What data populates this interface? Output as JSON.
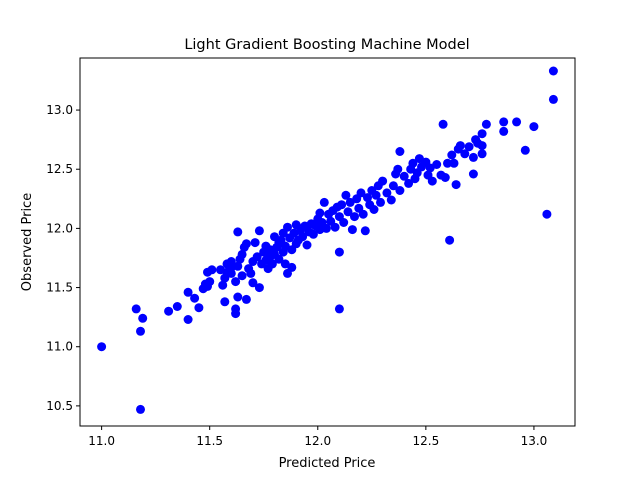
{
  "chart_data": {
    "type": "scatter",
    "title": "Light Gradient Boosting Machine Model",
    "xlabel": "Predicted Price",
    "ylabel": "Observed Price",
    "xlim": [
      10.9,
      13.19
    ],
    "ylim": [
      10.33,
      13.44
    ],
    "xticks": [
      {
        "value": 11.0,
        "label": "11.0"
      },
      {
        "value": 11.5,
        "label": "11.5"
      },
      {
        "value": 12.0,
        "label": "12.0"
      },
      {
        "value": 12.5,
        "label": "12.5"
      },
      {
        "value": 13.0,
        "label": "13.0"
      }
    ],
    "yticks": [
      {
        "value": 10.5,
        "label": "10.5"
      },
      {
        "value": 11.0,
        "label": "11.0"
      },
      {
        "value": 11.5,
        "label": "11.5"
      },
      {
        "value": 12.0,
        "label": "12.0"
      },
      {
        "value": 12.5,
        "label": "12.5"
      },
      {
        "value": 13.0,
        "label": "13.0"
      }
    ],
    "grid": false,
    "legend": "none",
    "marker_color": "#0000ff",
    "series": [
      {
        "points": [
          [
            11.0,
            11.0
          ],
          [
            11.18,
            10.47
          ],
          [
            11.16,
            11.32
          ],
          [
            11.19,
            11.24
          ],
          [
            11.18,
            11.13
          ],
          [
            11.31,
            11.3
          ],
          [
            11.35,
            11.34
          ],
          [
            11.4,
            11.23
          ],
          [
            11.4,
            11.46
          ],
          [
            11.43,
            11.41
          ],
          [
            11.45,
            11.33
          ],
          [
            11.47,
            11.49
          ],
          [
            11.48,
            11.53
          ],
          [
            11.49,
            11.51
          ],
          [
            11.5,
            11.55
          ],
          [
            11.49,
            11.63
          ],
          [
            11.51,
            11.65
          ],
          [
            11.55,
            11.65
          ],
          [
            11.56,
            11.52
          ],
          [
            11.57,
            11.38
          ],
          [
            11.57,
            11.58
          ],
          [
            11.58,
            11.63
          ],
          [
            11.58,
            11.7
          ],
          [
            11.6,
            11.62
          ],
          [
            11.6,
            11.67
          ],
          [
            11.6,
            11.72
          ],
          [
            11.62,
            11.55
          ],
          [
            11.62,
            11.32
          ],
          [
            11.62,
            11.28
          ],
          [
            11.63,
            11.42
          ],
          [
            11.63,
            11.97
          ],
          [
            11.63,
            11.68
          ],
          [
            11.64,
            11.74
          ],
          [
            11.65,
            11.6
          ],
          [
            11.65,
            11.78
          ],
          [
            11.66,
            11.84
          ],
          [
            11.67,
            11.4
          ],
          [
            11.67,
            11.87
          ],
          [
            11.68,
            11.66
          ],
          [
            11.69,
            11.62
          ],
          [
            11.7,
            11.72
          ],
          [
            11.7,
            11.54
          ],
          [
            11.71,
            11.88
          ],
          [
            11.72,
            11.76
          ],
          [
            11.73,
            11.98
          ],
          [
            11.73,
            11.5
          ],
          [
            11.74,
            11.7
          ],
          [
            11.75,
            11.8
          ],
          [
            11.76,
            11.73
          ],
          [
            11.76,
            11.85
          ],
          [
            11.77,
            11.66
          ],
          [
            11.78,
            11.76
          ],
          [
            11.78,
            11.82
          ],
          [
            11.79,
            11.7
          ],
          [
            11.8,
            11.78
          ],
          [
            11.8,
            11.93
          ],
          [
            11.81,
            11.84
          ],
          [
            11.82,
            11.88
          ],
          [
            11.82,
            11.74
          ],
          [
            11.83,
            11.9
          ],
          [
            11.84,
            11.8
          ],
          [
            11.84,
            11.96
          ],
          [
            11.85,
            11.85
          ],
          [
            11.85,
            11.7
          ],
          [
            11.86,
            11.62
          ],
          [
            11.86,
            12.01
          ],
          [
            11.87,
            11.92
          ],
          [
            11.88,
            11.82
          ],
          [
            11.88,
            11.67
          ],
          [
            11.89,
            11.96
          ],
          [
            11.9,
            11.87
          ],
          [
            11.9,
            12.03
          ],
          [
            11.91,
            11.9
          ],
          [
            11.92,
            11.98
          ],
          [
            11.93,
            11.93
          ],
          [
            11.94,
            12.02
          ],
          [
            11.95,
            11.86
          ],
          [
            11.96,
            11.97
          ],
          [
            11.97,
            12.04
          ],
          [
            11.98,
            11.95
          ],
          [
            11.99,
            12.02
          ],
          [
            12.0,
            12.08
          ],
          [
            12.01,
            11.99
          ],
          [
            12.01,
            12.13
          ],
          [
            12.02,
            12.05
          ],
          [
            12.03,
            12.22
          ],
          [
            12.04,
            12.0
          ],
          [
            12.05,
            12.12
          ],
          [
            12.06,
            12.06
          ],
          [
            12.07,
            12.15
          ],
          [
            12.08,
            12.01
          ],
          [
            12.09,
            12.18
          ],
          [
            12.1,
            11.8
          ],
          [
            12.1,
            11.32
          ],
          [
            12.1,
            12.1
          ],
          [
            12.11,
            12.2
          ],
          [
            12.12,
            12.05
          ],
          [
            12.13,
            12.28
          ],
          [
            12.14,
            12.14
          ],
          [
            12.15,
            12.22
          ],
          [
            12.16,
            11.99
          ],
          [
            12.17,
            12.1
          ],
          [
            12.18,
            12.25
          ],
          [
            12.19,
            12.17
          ],
          [
            12.2,
            12.3
          ],
          [
            12.21,
            12.12
          ],
          [
            12.22,
            11.98
          ],
          [
            12.23,
            12.26
          ],
          [
            12.24,
            12.2
          ],
          [
            12.25,
            12.32
          ],
          [
            12.26,
            12.16
          ],
          [
            12.27,
            12.28
          ],
          [
            12.28,
            12.36
          ],
          [
            12.29,
            12.22
          ],
          [
            12.3,
            12.4
          ],
          [
            12.32,
            12.3
          ],
          [
            12.34,
            12.24
          ],
          [
            12.35,
            12.36
          ],
          [
            12.36,
            12.46
          ],
          [
            12.37,
            12.5
          ],
          [
            12.38,
            12.32
          ],
          [
            12.38,
            12.65
          ],
          [
            12.4,
            12.44
          ],
          [
            12.42,
            12.38
          ],
          [
            12.43,
            12.5
          ],
          [
            12.44,
            12.55
          ],
          [
            12.45,
            12.42
          ],
          [
            12.46,
            12.47
          ],
          [
            12.47,
            12.59
          ],
          [
            12.48,
            12.52
          ],
          [
            12.5,
            12.56
          ],
          [
            12.51,
            12.45
          ],
          [
            12.52,
            12.51
          ],
          [
            12.53,
            12.4
          ],
          [
            12.55,
            12.54
          ],
          [
            12.57,
            12.45
          ],
          [
            12.58,
            12.88
          ],
          [
            12.59,
            12.43
          ],
          [
            12.6,
            12.55
          ],
          [
            12.61,
            11.9
          ],
          [
            12.62,
            12.62
          ],
          [
            12.63,
            12.55
          ],
          [
            12.64,
            12.37
          ],
          [
            12.65,
            12.67
          ],
          [
            12.66,
            12.7
          ],
          [
            12.68,
            12.63
          ],
          [
            12.7,
            12.69
          ],
          [
            12.72,
            12.46
          ],
          [
            12.72,
            12.6
          ],
          [
            12.73,
            12.75
          ],
          [
            12.74,
            12.72
          ],
          [
            12.76,
            12.8
          ],
          [
            12.76,
            12.63
          ],
          [
            12.78,
            12.88
          ],
          [
            12.76,
            12.7
          ],
          [
            12.86,
            12.82
          ],
          [
            12.86,
            12.9
          ],
          [
            12.92,
            12.9
          ],
          [
            12.96,
            12.66
          ],
          [
            13.0,
            12.86
          ],
          [
            13.06,
            12.12
          ],
          [
            13.09,
            13.09
          ],
          [
            13.09,
            13.33
          ]
        ]
      }
    ]
  }
}
